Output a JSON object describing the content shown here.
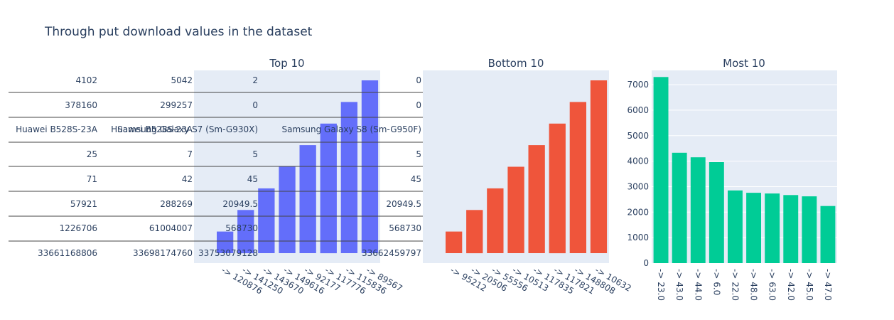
{
  "title": "Through put download values in the dataset",
  "colors": {
    "top": "#636efa",
    "bottom": "#ef553b",
    "most": "#00cc96",
    "plot_bg": "#e5ecf6",
    "text": "#2a3f5f",
    "grid": "#ffffff",
    "table_line": "#444444"
  },
  "table": {
    "columns": [
      [
        "4102",
        "378160",
        "Huawei B528S-23A",
        "25",
        "71",
        "57921",
        "1226706",
        "33661168806"
      ],
      [
        "5042",
        "299257",
        "Huawei B528S-23A",
        "7",
        "42",
        "288269",
        "61004007",
        "33698174760"
      ],
      [
        "2",
        "0",
        "Samsung Galaxy S7 (Sm-G930X)",
        "5",
        "45",
        "20949.5",
        "568730",
        "33753079128"
      ],
      [
        "0",
        "0",
        "Samsung Galaxy S8 (Sm-G950F)",
        "5",
        "45",
        "20949.5",
        "568730",
        "33662459797"
      ]
    ]
  },
  "chart_data": [
    {
      "type": "bar",
      "title": "Top 10",
      "categories": [
        "-> 120876",
        "-> 141250",
        "-> 143670",
        "-> 149616",
        "-> 92177",
        "-> 117776",
        "-> 115836",
        "-> 89567"
      ],
      "values": [
        1,
        2,
        3,
        4,
        5,
        6,
        7,
        8
      ],
      "xlabel": "",
      "ylabel": ""
    },
    {
      "type": "bar",
      "title": "Bottom 10",
      "categories": [
        "-> 95212",
        "-> 20506",
        "-> 55556",
        "-> 10513",
        "-> 117835",
        "-> 117821",
        "-> 148808",
        "-> 10632"
      ],
      "values": [
        1,
        2,
        3,
        4,
        5,
        6,
        7,
        8
      ],
      "xlabel": "",
      "ylabel": ""
    },
    {
      "type": "bar",
      "title": "Most 10",
      "categories": [
        "-> 23.0",
        "-> 43.0",
        "-> 44.0",
        "-> 6.0",
        "-> 22.0",
        "-> 48.0",
        "-> 63.0",
        "-> 42.0",
        "-> 45.0",
        "-> 47.0"
      ],
      "values": [
        7300,
        4330,
        4150,
        3960,
        2850,
        2760,
        2730,
        2670,
        2620,
        2240
      ],
      "ylim": [
        0,
        7560
      ],
      "yticks": [
        "0",
        "1000",
        "2000",
        "3000",
        "4000",
        "5000",
        "6000",
        "7000"
      ],
      "xlabel": "",
      "ylabel": ""
    }
  ]
}
